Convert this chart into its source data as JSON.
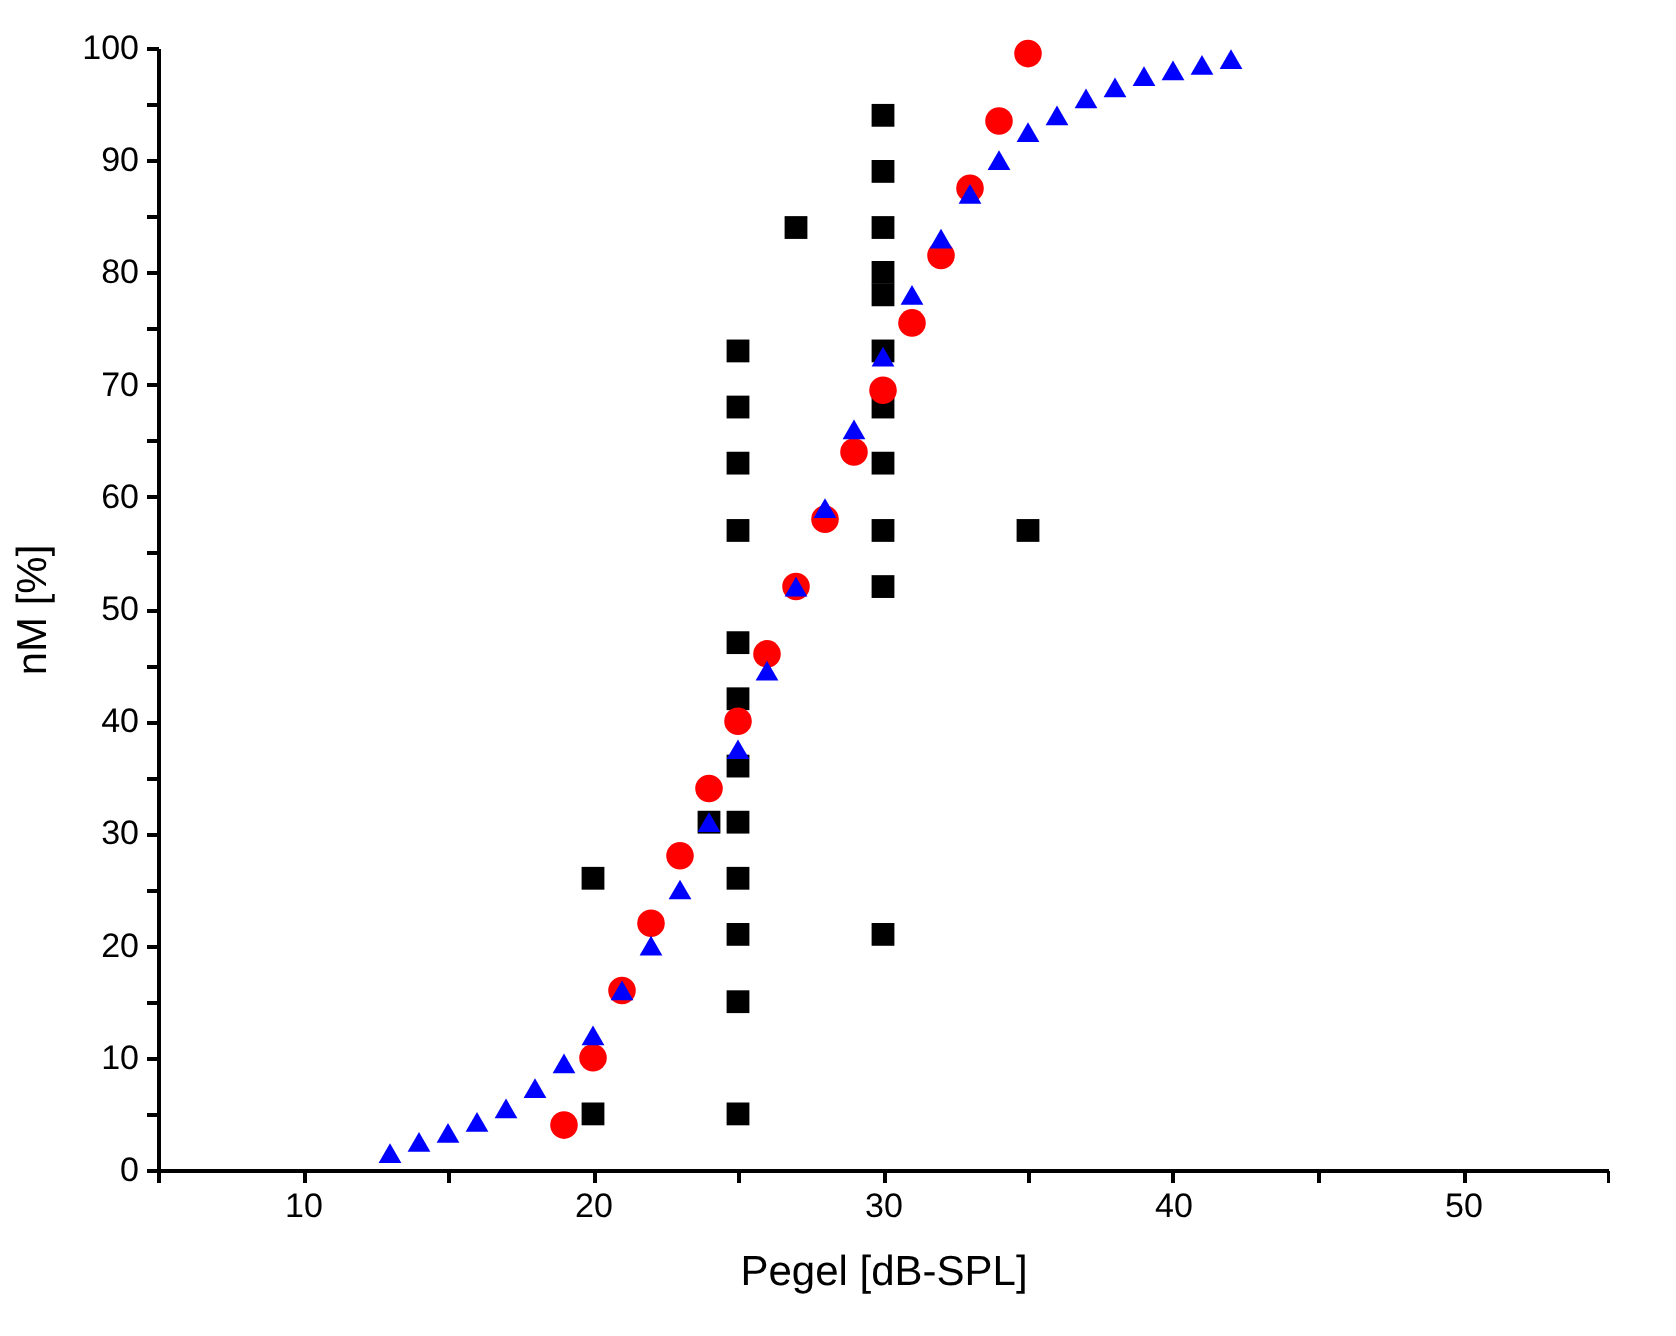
{
  "chart_data": {
    "type": "scatter",
    "xlabel": "Pegel [dB-SPL]",
    "ylabel": "nM [%]",
    "xlim": [
      5,
      55
    ],
    "xticks": [
      {
        "value": 5,
        "label": null
      },
      10,
      {
        "value": 15,
        "label": null
      },
      20,
      {
        "value": 25,
        "label": null
      },
      30,
      {
        "value": 35,
        "label": null
      },
      40,
      {
        "value": 45,
        "label": null
      },
      50,
      {
        "value": 55,
        "label": null
      }
    ],
    "ylim": [
      0,
      100
    ],
    "yticks": [
      0,
      {
        "value": 5,
        "label": null
      },
      10,
      {
        "value": 15,
        "label": null
      },
      20,
      {
        "value": 25,
        "label": null
      },
      30,
      {
        "value": 35,
        "label": null
      },
      40,
      {
        "value": 45,
        "label": null
      },
      50,
      {
        "value": 55,
        "label": null
      },
      60,
      {
        "value": 65,
        "label": null
      },
      70,
      {
        "value": 75,
        "label": null
      },
      80,
      {
        "value": 85,
        "label": null
      },
      90,
      {
        "value": 95,
        "label": null
      },
      100
    ],
    "grid": false,
    "series": [
      {
        "color": "#000000",
        "marker": "square",
        "x": [
          20,
          20,
          24,
          25,
          25,
          25,
          25,
          25,
          25,
          25,
          25,
          25,
          25,
          25,
          25,
          27,
          30,
          30,
          30,
          30,
          30,
          30,
          30,
          30,
          30,
          30,
          30,
          35
        ],
        "values": [
          26,
          5,
          31,
          73,
          68,
          63,
          57,
          47,
          42,
          36,
          31,
          26,
          21,
          15,
          5,
          84,
          94,
          89,
          84,
          80,
          78,
          73,
          68,
          63,
          57,
          52,
          21,
          57
        ]
      },
      {
        "color": "#ff0000",
        "marker": "circle",
        "x": [
          19,
          20,
          21,
          22,
          23,
          24,
          25,
          26,
          27,
          28,
          29,
          30,
          31,
          32,
          33,
          34,
          35
        ],
        "values": [
          4,
          10,
          16,
          22,
          28,
          34,
          40,
          46,
          52,
          58,
          64,
          69.5,
          75.5,
          81.5,
          87.5,
          93.5,
          99.5
        ]
      },
      {
        "color": "#0000ff",
        "marker": "triangle",
        "x": [
          13,
          14,
          15,
          16,
          17,
          18,
          19,
          20,
          21,
          22,
          23,
          24,
          25,
          26,
          27,
          28,
          29,
          30,
          31,
          32,
          33,
          34,
          35,
          36,
          37,
          38,
          39,
          40,
          41,
          42
        ],
        "values": [
          1.5,
          2.5,
          3.3,
          4.3,
          5.5,
          7.3,
          9.5,
          12,
          16,
          20,
          25,
          31,
          37.5,
          44.5,
          52,
          59,
          66,
          72.5,
          78,
          83,
          87,
          90,
          92.5,
          94,
          95.5,
          96.5,
          97.5,
          98,
          98.5,
          99
        ]
      }
    ]
  }
}
